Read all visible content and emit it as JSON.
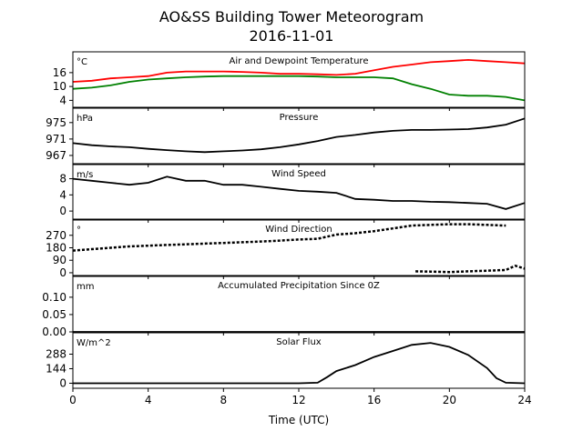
{
  "chart_data": {
    "type": "line",
    "title": "AO&SS Building Tower Meteorogram",
    "subtitle": "2016-11-01",
    "xlabel": "Time (UTC)",
    "xlim": [
      0,
      24
    ],
    "xticks": [
      0,
      4,
      8,
      12,
      16,
      20,
      24
    ],
    "panels": [
      {
        "id": "temperature",
        "title": "Air and Dewpoint Temperature",
        "unit": "°C",
        "ylim": [
          1,
          25
        ],
        "yticks": [
          4,
          10,
          16
        ],
        "series": [
          {
            "color": "#ff0000",
            "marker": false,
            "x": [
              0,
              1,
              2,
              3,
              4,
              5,
              6,
              7,
              8,
              9,
              10,
              11,
              12,
              13,
              14,
              15,
              16,
              17,
              18,
              19,
              20,
              21,
              22,
              23,
              24
            ],
            "y": [
              12,
              12.5,
              13.5,
              14,
              14.5,
              16,
              16.5,
              16.5,
              16.5,
              16.3,
              16,
              15.5,
              15.5,
              15.3,
              15,
              15.5,
              17,
              18.5,
              19.5,
              20.5,
              21,
              21.5,
              21,
              20.5,
              20
            ]
          },
          {
            "color": "#008000",
            "marker": false,
            "x": [
              0,
              1,
              2,
              3,
              4,
              5,
              6,
              7,
              8,
              9,
              10,
              11,
              12,
              13,
              14,
              15,
              16,
              17,
              18,
              19,
              20,
              21,
              22,
              23,
              24
            ],
            "y": [
              9,
              9.5,
              10.5,
              12,
              13,
              13.5,
              14,
              14.3,
              14.5,
              14.5,
              14.5,
              14.5,
              14.5,
              14.3,
              14,
              14,
              14,
              13.5,
              11,
              9,
              6.5,
              6,
              6,
              5.5,
              4
            ]
          }
        ]
      },
      {
        "id": "pressure",
        "title": "Pressure",
        "unit": "hPa",
        "ylim": [
          965,
          978.5
        ],
        "yticks": [
          967,
          971,
          975
        ],
        "series": [
          {
            "color": "#000000",
            "marker": false,
            "x": [
              0,
              1,
              2,
              3,
              4,
              5,
              6,
              7,
              8,
              9,
              10,
              11,
              12,
              13,
              14,
              15,
              16,
              17,
              18,
              19,
              20,
              21,
              22,
              23,
              24
            ],
            "y": [
              970,
              969.5,
              969.2,
              969,
              968.6,
              968.3,
              968,
              967.8,
              968,
              968.2,
              968.5,
              969,
              969.7,
              970.5,
              971.5,
              972,
              972.6,
              973,
              973.2,
              973.2,
              973.3,
              973.4,
              973.8,
              974.5,
              976
            ]
          }
        ]
      },
      {
        "id": "wind-speed",
        "title": "Wind Speed",
        "unit": "m/s",
        "ylim": [
          -2,
          11.5
        ],
        "yticks": [
          0,
          4,
          8
        ],
        "series": [
          {
            "color": "#000000",
            "marker": false,
            "x": [
              0,
              1,
              2,
              3,
              4,
              5,
              6,
              7,
              8,
              9,
              10,
              11,
              12,
              13,
              14,
              15,
              16,
              17,
              18,
              19,
              20,
              21,
              22,
              23,
              24
            ],
            "y": [
              8,
              7.5,
              7,
              6.5,
              7,
              8.5,
              7.5,
              7.5,
              6.5,
              6.5,
              6,
              5.5,
              5,
              4.8,
              4.5,
              3,
              2.8,
              2.5,
              2.5,
              2.3,
              2.2,
              2,
              1.8,
              0.5,
              2
            ]
          }
        ]
      },
      {
        "id": "wind-direction",
        "title": "Wind Direction",
        "unit": "°",
        "ylim": [
          -20,
          380
        ],
        "yticks": [
          0,
          90,
          180,
          270
        ],
        "series": [
          {
            "color": "#000000",
            "marker": true,
            "x": [
              0,
              1,
              2,
              3,
              4,
              5,
              6,
              7,
              8,
              9,
              10,
              11,
              12,
              13,
              14,
              15,
              16,
              17,
              18,
              19,
              20,
              21,
              22,
              23
            ],
            "y": [
              160,
              170,
              180,
              190,
              195,
              200,
              205,
              210,
              215,
              220,
              225,
              232,
              240,
              245,
              275,
              285,
              300,
              320,
              340,
              345,
              350,
              350,
              345,
              340
            ]
          },
          {
            "color": "#000000",
            "marker": true,
            "x": [
              18.2,
              19,
              20,
              21,
              22,
              23,
              23.5,
              24
            ],
            "y": [
              10,
              8,
              5,
              10,
              15,
              20,
              50,
              30
            ]
          }
        ]
      },
      {
        "id": "precipitation",
        "title": "Accumulated Precipitation Since 0Z",
        "unit": "mm",
        "ylim": [
          0,
          0.16
        ],
        "yticks": [
          0.0,
          0.05,
          0.1
        ],
        "ytick_labels": [
          "0.00",
          "0.05",
          "0.10"
        ],
        "series": [
          {
            "color": "#000000",
            "marker": false,
            "x": [
              0,
              24
            ],
            "y": [
              0,
              0
            ]
          }
        ]
      },
      {
        "id": "solar-flux",
        "title": "Solar Flux",
        "unit": "W/m^2",
        "ylim": [
          -50,
          500
        ],
        "yticks": [
          0,
          144,
          288
        ],
        "series": [
          {
            "color": "#000000",
            "marker": false,
            "x": [
              0,
              12,
              13,
              13.5,
              14,
              15,
              16,
              17,
              18,
              19,
              20,
              21,
              22,
              22.5,
              23,
              24
            ],
            "y": [
              0,
              0,
              5,
              60,
              120,
              180,
              260,
              320,
              380,
              400,
              360,
              280,
              150,
              50,
              5,
              0
            ]
          }
        ]
      }
    ]
  }
}
